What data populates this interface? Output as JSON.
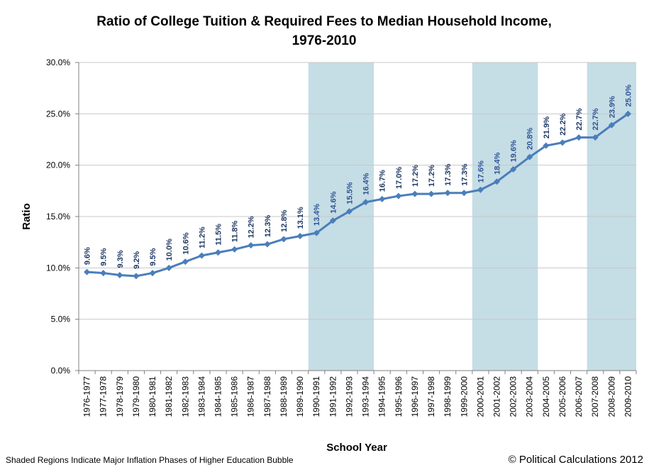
{
  "chart_data": {
    "type": "line",
    "title_line1": "Ratio of College Tuition & Required Fees to Median Household Income,",
    "title_line2": "1976-2010",
    "xlabel": "School Year",
    "ylabel": "Ratio",
    "ylim": [
      0,
      30
    ],
    "ytick_values": [
      0,
      5,
      10,
      15,
      20,
      25,
      30
    ],
    "ytick_labels": [
      "0.0%",
      "5.0%",
      "10.0%",
      "15.0%",
      "20.0%",
      "25.0%",
      "30.0%"
    ],
    "grid": true,
    "categories": [
      "1976-1977",
      "1977-1978",
      "1978-1979",
      "1979-1980",
      "1980-1981",
      "1981-1982",
      "1982-1983",
      "1983-1984",
      "1984-1985",
      "1985-1986",
      "1986-1987",
      "1987-1988",
      "1988-1989",
      "1989-1990",
      "1990-1991",
      "1991-1992",
      "1992-1993",
      "1993-1994",
      "1994-1995",
      "1995-1996",
      "1996-1997",
      "1997-1998",
      "1998-1999",
      "1999-2000",
      "2000-2001",
      "2001-2002",
      "2002-2003",
      "2003-2004",
      "2004-2005",
      "2005-2006",
      "2006-2007",
      "2007-2008",
      "2008-2009",
      "2009-2010"
    ],
    "series": [
      {
        "name": "Ratio",
        "values": [
          9.6,
          9.5,
          9.3,
          9.2,
          9.5,
          10.0,
          10.6,
          11.2,
          11.5,
          11.8,
          12.2,
          12.3,
          12.8,
          13.1,
          13.4,
          14.6,
          15.5,
          16.4,
          16.7,
          17.0,
          17.2,
          17.2,
          17.3,
          17.3,
          17.6,
          18.4,
          19.6,
          20.8,
          21.9,
          22.2,
          22.7,
          22.7,
          23.9,
          25.0
        ],
        "labels": [
          "9.6%",
          "9.5%",
          "9.3%",
          "9.2%",
          "9.5%",
          "10.0%",
          "10.6%",
          "11.2%",
          "11.5%",
          "11.8%",
          "12.2%",
          "12.3%",
          "12.8%",
          "13.1%",
          "13.4%",
          "14.6%",
          "15.5%",
          "16.4%",
          "16.7%",
          "17.0%",
          "17.2%",
          "17.2%",
          "17.3%",
          "17.3%",
          "17.6%",
          "18.4%",
          "19.6%",
          "20.8%",
          "21.9%",
          "22.2%",
          "22.7%",
          "22.7%",
          "23.9%",
          "25.0%"
        ]
      }
    ],
    "shaded_ranges": [
      {
        "from": "1990-1991",
        "to": "1993-1994"
      },
      {
        "from": "2000-2001",
        "to": "2003-2004"
      },
      {
        "from": "2007-2008",
        "to": "2009-2010"
      }
    ]
  },
  "colors": {
    "line": "#4a7ebb",
    "marker": "#4a7ebb",
    "shade": "#c5dde5",
    "grid": "#c8c8c8",
    "label_plain": "#1f3864",
    "label_shaded": "#2f5496"
  },
  "footer": {
    "note": "Shaded Regions Indicate Major Inflation Phases of Higher Education Bubble",
    "credit": "© Political Calculations 2012"
  }
}
